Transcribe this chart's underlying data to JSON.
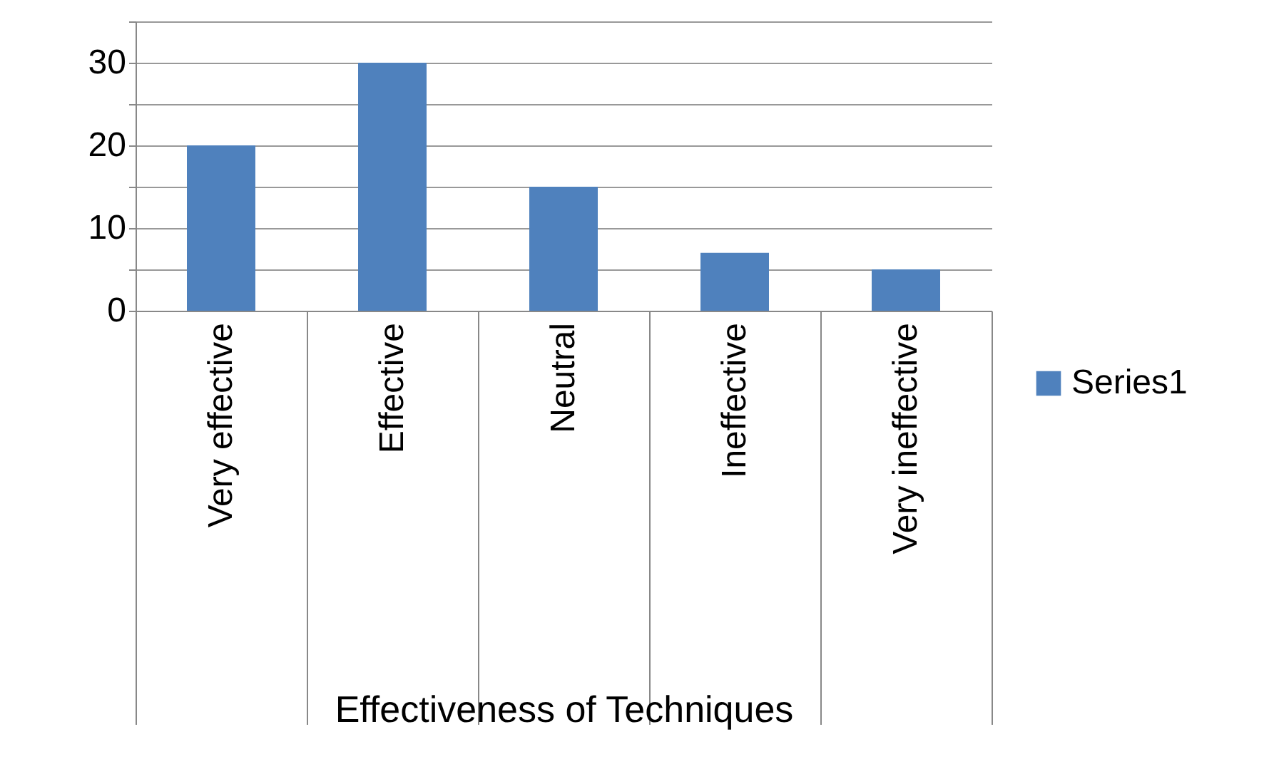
{
  "chart_data": {
    "type": "bar",
    "xlabel": "Effectiveness of Techniques",
    "categories": [
      "Very effective",
      "Effective",
      "Neutral",
      "Ineffective",
      "Very ineffective"
    ],
    "series": [
      {
        "name": "Series1",
        "color": "#4f81bd",
        "values": [
          20,
          30,
          15,
          7,
          5
        ]
      }
    ],
    "ylim": [
      0,
      35
    ],
    "yticks": [
      0,
      {
        "value": 5,
        "label": null
      },
      10,
      {
        "value": 15,
        "label": null
      },
      20,
      {
        "value": 25,
        "label": null
      },
      30,
      {
        "value": 35,
        "label": null
      }
    ],
    "grid": "y",
    "legend": "right"
  }
}
